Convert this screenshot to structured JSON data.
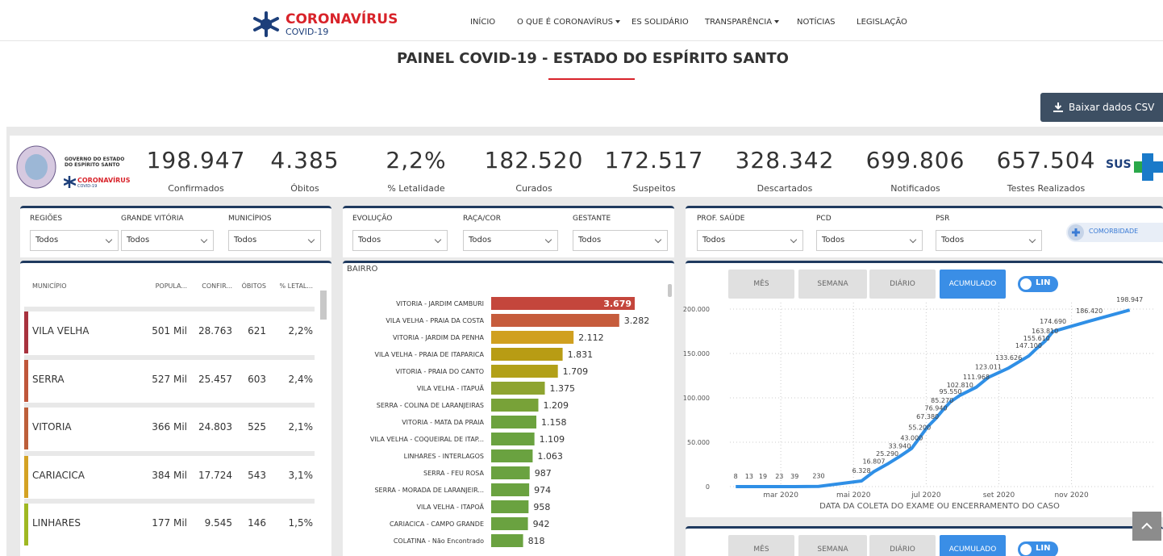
{
  "nav": {
    "logo_title": "CORONAVÍRUS",
    "logo_subtitle": "COVID-19",
    "items": [
      "INÍCIO",
      "O QUE É CORONAVÍRUS",
      "ES SOLIDÁRIO",
      "TRANSPARÊNCIA",
      "NOTÍCIAS",
      "LEGISLAÇÃO"
    ]
  },
  "header": {
    "title": "PAINEL COVID-19 - ESTADO DO ESPÍRITO SANTO",
    "download_button": "Baixar dados CSV"
  },
  "logo": {
    "line1": "GOVERNO DO ESTADO",
    "line2": "DO ESPÍRITO SANTO",
    "brand": "CORONAVÍRUS",
    "brand_sub": "COVID-19"
  },
  "kpis": [
    {
      "value": "198.947",
      "label": "Confirmados"
    },
    {
      "value": "4.385",
      "label": "Óbitos"
    },
    {
      "value": "2,2%",
      "label": "% Letalidade"
    },
    {
      "value": "182.520",
      "label": "Curados"
    },
    {
      "value": "172.517",
      "label": "Suspeitos"
    },
    {
      "value": "328.342",
      "label": "Descartados"
    },
    {
      "value": "699.806",
      "label": "Notificados"
    },
    {
      "value": "657.504",
      "label": "Testes Realizados"
    }
  ],
  "sus": "SUS",
  "filters": [
    [
      {
        "label": "REGIÕES",
        "value": "Todos"
      },
      {
        "label": "GRANDE VITÓRIA",
        "value": "Todos"
      },
      {
        "label": "MUNICÍPIOS",
        "value": "Todos"
      }
    ],
    [
      {
        "label": "EVOLUÇÃO",
        "value": "Todos"
      },
      {
        "label": "RAÇA/COR",
        "value": "Todos"
      },
      {
        "label": "GESTANTE",
        "value": "Todos"
      }
    ],
    [
      {
        "label": "PROF. SAÚDE",
        "value": "Todos"
      },
      {
        "label": "PCD",
        "value": "Todos"
      },
      {
        "label": "PSR",
        "value": "Todos"
      }
    ]
  ],
  "comorbidity_button": "COMORBIDADE",
  "table": {
    "columns": [
      "MUNICÍPIO",
      "POPULA...",
      "CONFIR...",
      "ÓBITOS",
      "% LETAL..."
    ],
    "row_colors": [
      "#a8323e",
      "#bf563a",
      "#bd5f3a",
      "#d4a224",
      "#9fb822"
    ],
    "rows": [
      [
        "VILA VELHA",
        "501 Mil",
        "28.763",
        "621",
        "2,2%"
      ],
      [
        "SERRA",
        "527 Mil",
        "25.457",
        "603",
        "2,4%"
      ],
      [
        "VITORIA",
        "366 Mil",
        "24.803",
        "525",
        "2,1%"
      ],
      [
        "CARIACICA",
        "384 Mil",
        "17.724",
        "543",
        "3,1%"
      ],
      [
        "LINHARES",
        "177 Mil",
        "9.545",
        "146",
        "1,5%"
      ]
    ]
  },
  "period_buttons": [
    "MÊS",
    "SEMANA",
    "DIÁRIO",
    "ACUMULADO"
  ],
  "scale_toggle": "LIN",
  "chart_data": [
    {
      "type": "bar",
      "orientation": "horizontal",
      "title": "BAIRRO",
      "categories": [
        "VITORIA - JARDIM CAMBURI",
        "VILA VELHA - PRAIA DA COSTA",
        "VITORIA - JARDIM DA PENHA",
        "VILA VELHA - PRAIA DE ITAPARICA",
        "VITORIA - PRAIA DO CANTO",
        "VILA VELHA - ITAPUÃ",
        "SERRA - COLINA DE LARANJEIRAS",
        "VITORIA - MATA DA PRAIA",
        "VILA VELHA - COQUEIRAL DE ITAP...",
        "LINHARES - INTERLAGOS",
        "SERRA - FEU ROSA",
        "SERRA - MORADA DE LARANJEIR...",
        "VILA VELHA - ITAPOÃ",
        "CARIACICA - CAMPO GRANDE",
        "COLATINA - Não Encontrado"
      ],
      "values": [
        3679,
        3282,
        2112,
        1831,
        1709,
        1375,
        1209,
        1158,
        1109,
        1063,
        987,
        974,
        958,
        942,
        818
      ],
      "value_labels": [
        "3.679",
        "3.282",
        "2.112",
        "1.831",
        "1.709",
        "1.375",
        "1.209",
        "1.158",
        "1.109",
        "1.063",
        "987",
        "974",
        "958",
        "942",
        "818"
      ],
      "colors": [
        "#c4463c",
        "#c65c3c",
        "#d0a020",
        "#b89c14",
        "#b2a018",
        "#8ea430",
        "#78a238",
        "#6ca23e",
        "#6aa240",
        "#6aa240",
        "#6aa240",
        "#6aa240",
        "#6aa240",
        "#6aa240",
        "#6aa240"
      ]
    },
    {
      "type": "line",
      "color": "#2f8fe6",
      "x": [
        1.76,
        2.13,
        2.51,
        2.96,
        3.38,
        4.04,
        5.22,
        5.56,
        5.93,
        6.27,
        6.6,
        6.82,
        7.04,
        7.27,
        7.44,
        7.67,
        7.93,
        8.38,
        8.71,
        9.27,
        9.82,
        10.04,
        10.27,
        10.49,
        11.49,
        12.6
      ],
      "values": [
        8,
        13,
        19,
        23,
        39,
        230,
        6328,
        16807,
        25290,
        33940,
        43000,
        55200,
        67380,
        76940,
        85270,
        95550,
        102810,
        111968,
        123011,
        133626,
        147100,
        155610,
        163810,
        174690,
        186420,
        198947
      ],
      "value_labels": [
        "8",
        "13",
        "19",
        "23",
        "39",
        "230",
        "6.328",
        "16.807",
        "25.290",
        "33.940",
        "43.000",
        "55.200",
        "67.380",
        "76.940",
        "85.270",
        "95.550",
        "102.810",
        "111.968",
        "123.011",
        "133.626",
        "147.100",
        "155.610",
        "163.810",
        "174.690",
        "186.420",
        "198.947"
      ],
      "xlim": [
        1.6,
        13.25
      ],
      "xticks": [
        {
          "value": 3,
          "label": "mar 2020"
        },
        {
          "value": 5,
          "label": "mai 2020"
        },
        {
          "value": 7,
          "label": "jul 2020"
        },
        {
          "value": 9,
          "label": "set 2020"
        },
        {
          "value": 11,
          "label": "nov 2020"
        }
      ],
      "ylim": [
        0,
        200000
      ],
      "yticks": [
        0,
        {
          "value": 50000,
          "label": "50.000"
        },
        {
          "value": 100000,
          "label": "100.000"
        },
        {
          "value": 150000,
          "label": "150.000"
        },
        {
          "value": 200000,
          "label": "200.000"
        }
      ],
      "grid": true,
      "x_label": "DATA DA COLETA DO EXAME OU ENCERRAMENTO DO CASO"
    }
  ]
}
